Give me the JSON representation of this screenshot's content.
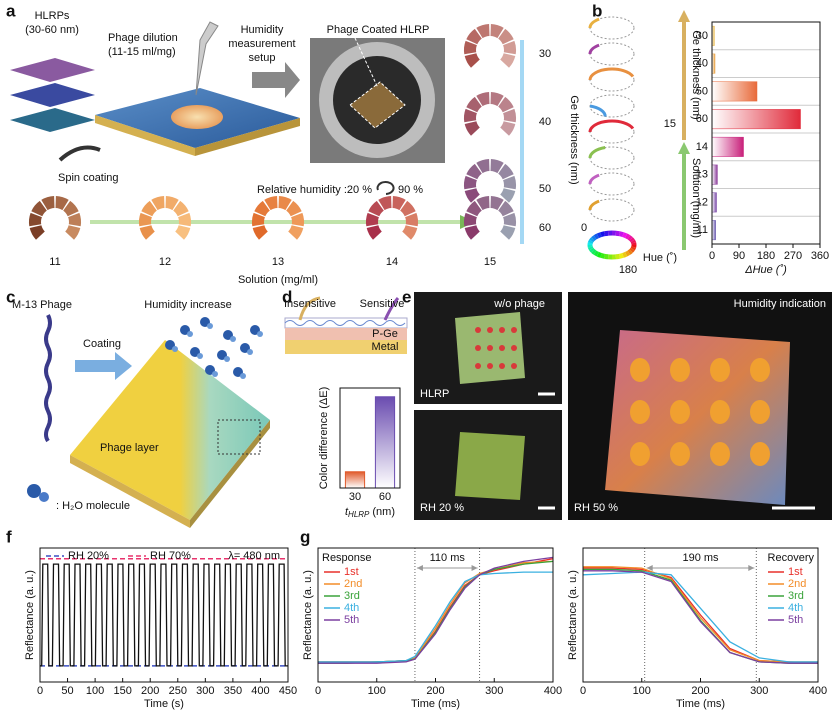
{
  "panel_labels": [
    "a",
    "b",
    "c",
    "d",
    "e",
    "f",
    "g"
  ],
  "panel_a": {
    "hlrps": "HLRPs",
    "hlrps_size": "(30-60 nm)",
    "phage_dilution": "Phage dilution",
    "dilution_range": "(11-15 ml/mg)",
    "spin_coating": "Spin coating",
    "setup": [
      "Humidity",
      "measurement",
      "setup"
    ],
    "coated": "Phage Coated HLRP",
    "humidity": "Relative humidity :20 %",
    "humidity_end": "90 %",
    "solutions": [
      "11",
      "12",
      "13",
      "14",
      "15"
    ],
    "solution_label": "Solution (mg/ml)",
    "thicknesses": [
      "30",
      "40",
      "50",
      "60"
    ],
    "thickness_label": "Ge thickness (nm)"
  },
  "panel_b": {
    "hue_zero": "0",
    "hue_half": "180",
    "hue_label": "Hue (˚)",
    "thickness_label": "Ge thickness (nm)",
    "solution_label": "Solution (mg/ml)",
    "shared_label": "15"
  },
  "panel_c": {
    "phage": "M-13 Phage",
    "humidity": "Humidity increase",
    "coating": "Coating",
    "layer": "Phage layer",
    "molecule": ": H₂O molecule"
  },
  "panel_d": {
    "insensitive": "Insensitive",
    "sensitive": "Sensitive",
    "layer": "P-Ge",
    "metal": "Metal"
  },
  "panel_e": {
    "without": "w/o phage",
    "hlrp": "HLRP",
    "rh20": "RH 20 %",
    "rh50": "RH 50 %",
    "indication": "Humidity indication"
  },
  "chart_data": [
    {
      "type": "barh",
      "categories": [
        "30",
        "40",
        "50",
        "60",
        "14",
        "13",
        "12",
        "11"
      ],
      "values": [
        8,
        10,
        150,
        295,
        105,
        18,
        15,
        12
      ],
      "colors": [
        "#e8b84a",
        "#e8a040",
        "#e86a3a",
        "#e02a3a",
        "#c8207a",
        "#8a3a9a",
        "#7a4aa8",
        "#6a5ab0"
      ],
      "xlim": [
        0,
        360
      ],
      "xticks": [
        0,
        90,
        180,
        270,
        360
      ],
      "x_label": "ΔHue (˚)"
    },
    {
      "type": "bar",
      "categories": [
        "30",
        "60"
      ],
      "values": [
        13,
        73
      ],
      "colors": [
        "#e05a2b",
        "#6a4cb0"
      ],
      "ylim": [
        0,
        80
      ],
      "y_label": "Color difference (ΔE)",
      "x_label": "t",
      "x_label_sub": "HLRP",
      "x_label_unit": "(nm)"
    },
    {
      "type": "line",
      "xlim": [
        0,
        450
      ],
      "xticks": [
        0,
        50,
        100,
        150,
        200,
        250,
        300,
        350,
        400,
        450
      ],
      "ylim": [
        0,
        1
      ],
      "x_label": "Time (s)",
      "y_label": "Reflectance (a. u.)",
      "legend": "top",
      "annotation": "λ= 480 nm",
      "series": [
        {
          "name": "RH 20%",
          "color": "#3b4fc4",
          "dash": true,
          "x": [
            0,
            450
          ],
          "values": [
            0.12,
            0.12
          ]
        },
        {
          "name": "RH 70%",
          "color": "#e8336d",
          "dash": true,
          "x": [
            0,
            450
          ],
          "values": [
            0.92,
            0.92
          ]
        },
        {
          "color": "#111111",
          "x": [
            0,
            3,
            5,
            14,
            16,
            22.5,
            24.5,
            33.5,
            35.5,
            42,
            44,
            53,
            55,
            61.5,
            63.5,
            72.5,
            74.5,
            81,
            83,
            92,
            94,
            100.5,
            102.5,
            111.5,
            113.5,
            120,
            122,
            131,
            133,
            139.5,
            141.5,
            150.5,
            152.5,
            159,
            161,
            170,
            172,
            178.5,
            180.5,
            189.5,
            191.5,
            198,
            200,
            209,
            211,
            217.5,
            219.5,
            228.5,
            230.5,
            237,
            239,
            248,
            250,
            256.5,
            258.5,
            267.5,
            269.5,
            276,
            278,
            287,
            289,
            295.5,
            297.5,
            306.5,
            308.5,
            315,
            317,
            326,
            328,
            334.5,
            336.5,
            345.5,
            347.5,
            354,
            356,
            365,
            367,
            373.5,
            375.5,
            384.5,
            386.5,
            393,
            395,
            404,
            406,
            412.5,
            414.5,
            423.5,
            425.5,
            432,
            434,
            443,
            445,
            450
          ],
          "values": [
            0.12,
            0.12,
            0.88,
            0.88,
            0.12,
            0.12,
            0.88,
            0.88,
            0.12,
            0.12,
            0.88,
            0.88,
            0.12,
            0.12,
            0.88,
            0.88,
            0.12,
            0.12,
            0.88,
            0.88,
            0.12,
            0.12,
            0.88,
            0.88,
            0.12,
            0.12,
            0.88,
            0.88,
            0.12,
            0.12,
            0.88,
            0.88,
            0.12,
            0.12,
            0.88,
            0.88,
            0.12,
            0.12,
            0.88,
            0.88,
            0.12,
            0.12,
            0.88,
            0.88,
            0.12,
            0.12,
            0.88,
            0.88,
            0.12,
            0.12,
            0.88,
            0.88,
            0.12,
            0.12,
            0.88,
            0.88,
            0.12,
            0.12,
            0.88,
            0.88,
            0.12,
            0.12,
            0.88,
            0.88,
            0.12,
            0.12,
            0.88,
            0.88,
            0.12,
            0.12,
            0.88,
            0.88,
            0.12,
            0.12,
            0.88,
            0.88,
            0.12,
            0.12,
            0.88,
            0.88,
            0.12,
            0.12,
            0.88,
            0.88,
            0.12,
            0.12,
            0.88,
            0.88,
            0.12,
            0.12,
            0.88,
            0.88,
            0.12,
            0.12
          ]
        }
      ]
    },
    {
      "type": "line",
      "xlim": [
        0,
        400
      ],
      "xticks": [
        0,
        100,
        200,
        300,
        400
      ],
      "ylim": [
        0,
        1
      ],
      "x_label": "Time (ms)",
      "y_label": "Reflectance (a. u.)",
      "legend": "upper left",
      "legend_title": "Response",
      "markers": [
        165,
        275
      ],
      "annotation": "110 ms",
      "x": [
        0,
        50,
        100,
        150,
        165,
        200,
        225,
        250,
        275,
        300,
        350,
        400
      ],
      "series": [
        {
          "name": "1st",
          "color": "#e8302a",
          "values": [
            0.15,
            0.15,
            0.15,
            0.16,
            0.17,
            0.38,
            0.56,
            0.72,
            0.8,
            0.83,
            0.88,
            0.92
          ]
        },
        {
          "name": "2nd",
          "color": "#f28c28",
          "values": [
            0.15,
            0.15,
            0.15,
            0.16,
            0.18,
            0.4,
            0.58,
            0.74,
            0.81,
            0.84,
            0.89,
            0.9
          ]
        },
        {
          "name": "3rd",
          "color": "#3aa33a",
          "values": [
            0.14,
            0.14,
            0.15,
            0.16,
            0.17,
            0.37,
            0.55,
            0.71,
            0.8,
            0.84,
            0.88,
            0.9
          ]
        },
        {
          "name": "4th",
          "color": "#3ab0e0",
          "values": [
            0.15,
            0.15,
            0.15,
            0.16,
            0.19,
            0.42,
            0.6,
            0.75,
            0.8,
            0.81,
            0.82,
            0.82
          ]
        },
        {
          "name": "5th",
          "color": "#7b3fa0",
          "values": [
            0.14,
            0.14,
            0.14,
            0.15,
            0.17,
            0.36,
            0.54,
            0.7,
            0.8,
            0.85,
            0.9,
            0.93
          ]
        }
      ]
    },
    {
      "type": "line",
      "xlim": [
        0,
        400
      ],
      "xticks": [
        0,
        100,
        200,
        300,
        400
      ],
      "ylim": [
        0,
        1
      ],
      "x_label": "Time (ms)",
      "y_label": "Reflectance (a. u.)",
      "legend": "upper right",
      "legend_title": "Recovery",
      "markers": [
        105,
        295
      ],
      "annotation": "190 ms",
      "x": [
        0,
        50,
        100,
        150,
        200,
        250,
        300,
        350,
        400
      ],
      "series": [
        {
          "name": "1st",
          "color": "#e8302a",
          "values": [
            0.85,
            0.85,
            0.84,
            0.78,
            0.5,
            0.25,
            0.16,
            0.15,
            0.14
          ]
        },
        {
          "name": "2nd",
          "color": "#f28c28",
          "values": [
            0.86,
            0.86,
            0.85,
            0.77,
            0.48,
            0.24,
            0.16,
            0.15,
            0.15
          ]
        },
        {
          "name": "3rd",
          "color": "#3aa33a",
          "values": [
            0.84,
            0.84,
            0.83,
            0.76,
            0.46,
            0.22,
            0.15,
            0.14,
            0.14
          ]
        },
        {
          "name": "4th",
          "color": "#3ab0e0",
          "values": [
            0.8,
            0.81,
            0.82,
            0.8,
            0.55,
            0.3,
            0.18,
            0.15,
            0.15
          ]
        },
        {
          "name": "5th",
          "color": "#7b3fa0",
          "values": [
            0.83,
            0.83,
            0.82,
            0.75,
            0.45,
            0.22,
            0.15,
            0.14,
            0.14
          ]
        }
      ]
    }
  ]
}
